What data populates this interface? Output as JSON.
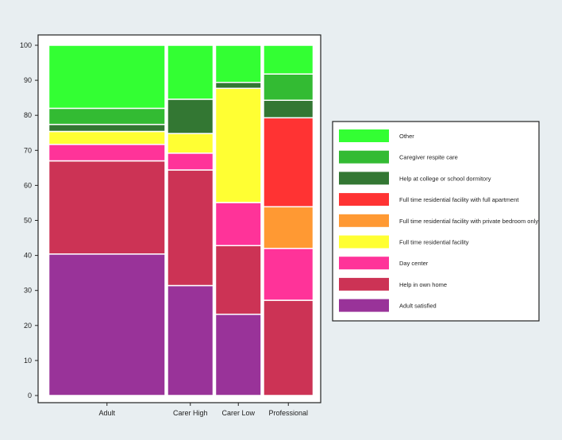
{
  "chart_data": {
    "type": "bar",
    "subtype": "stacked-mosaic",
    "title": "",
    "xlabel": "",
    "ylabel": "",
    "ylim": [
      0,
      100
    ],
    "yticks": [
      0,
      10,
      20,
      30,
      40,
      50,
      60,
      70,
      80,
      90,
      100
    ],
    "grid": false,
    "legend_position": "right",
    "categories": [
      "Adult",
      "Carer High",
      "Carer Low",
      "Professional"
    ],
    "category_widths": [
      0.445,
      0.18,
      0.18,
      0.195
    ],
    "series": [
      {
        "name": "Adult satisfied",
        "color": "#993399",
        "values": [
          40.4,
          31.4,
          23.2,
          0
        ]
      },
      {
        "name": "Help in own home",
        "color": "#cc3355",
        "values": [
          26.6,
          33.0,
          19.6,
          27.2
        ]
      },
      {
        "name": "Day center",
        "color": "#ff3399",
        "values": [
          4.7,
          4.8,
          12.3,
          14.8
        ]
      },
      {
        "name": "Full time residential facility",
        "color": "#ffff33",
        "values": [
          3.7,
          5.6,
          32.6,
          0
        ]
      },
      {
        "name": "Full time residential facility with private bedroom only",
        "color": "#ff9933",
        "values": [
          0,
          0,
          0,
          11.9
        ]
      },
      {
        "name": "Full time residential facility with full apartment",
        "color": "#ff3333",
        "values": [
          0,
          0,
          0,
          25.4
        ]
      },
      {
        "name": "Help at college or school dormitory",
        "color": "#337733",
        "values": [
          2.0,
          9.8,
          1.7,
          5.0
        ]
      },
      {
        "name": "Caregiver respite care",
        "color": "#33bb33",
        "values": [
          4.6,
          0,
          0,
          7.5
        ]
      },
      {
        "name": "Other",
        "color": "#33ff33",
        "values": [
          18.0,
          15.4,
          10.6,
          8.2
        ]
      }
    ],
    "legend_order": [
      "Other",
      "Caregiver respite care",
      "Help at college or school dormitory",
      "Full time residential facility with full apartment",
      "Full time residential facility with private bedroom only",
      "Full time residential facility",
      "Day center",
      "Help in own home",
      "Adult satisfied"
    ]
  }
}
